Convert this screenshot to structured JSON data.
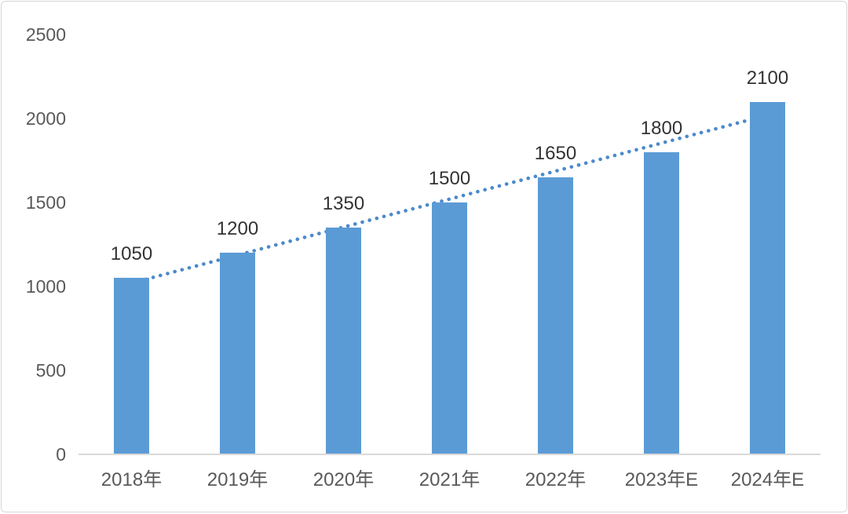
{
  "chart": {
    "colors": {
      "bar": "#5B9BD5",
      "trendline": "#4C89CB",
      "axis_line": "#D9D9D9",
      "tick_text": "#595959",
      "value_text": "#333333",
      "frame_border": "#D7D7D7",
      "background": "#FFFFFF"
    }
  },
  "chart_data": {
    "type": "bar",
    "title": "",
    "xlabel": "",
    "ylabel": "",
    "categories": [
      "2018年",
      "2019年",
      "2020年",
      "2021年",
      "2022年",
      "2023年E",
      "2024年E"
    ],
    "values": [
      1050,
      1200,
      1350,
      1500,
      1650,
      1800,
      2100
    ],
    "y_ticks": [
      0,
      500,
      1000,
      1500,
      2000,
      2500
    ],
    "ylim": [
      0,
      2500
    ],
    "grid": false,
    "legend": false,
    "trendline": {
      "style": "dotted",
      "start_value": 1020,
      "end_value": 2020
    }
  }
}
